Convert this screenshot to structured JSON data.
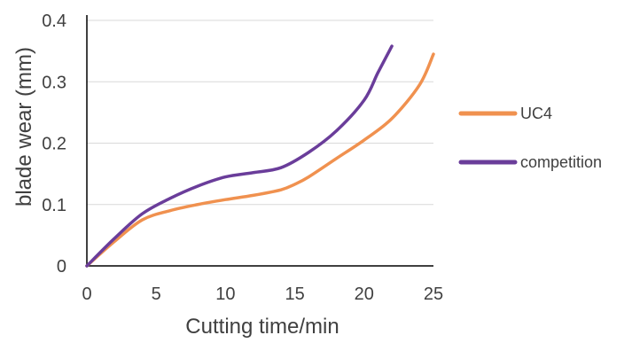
{
  "chart_data": {
    "type": "line",
    "title": "",
    "xlabel": "Cutting time/min",
    "ylabel": "blade wear (mm)",
    "xlim": [
      0,
      25
    ],
    "ylim": [
      0,
      0.4
    ],
    "x_ticks": [
      0,
      5,
      10,
      15,
      20,
      25
    ],
    "y_ticks": [
      0,
      0.1,
      0.2,
      0.3,
      0.4
    ],
    "x_tick_labels": [
      "0",
      "5",
      "10",
      "15",
      "20",
      "25"
    ],
    "y_tick_labels": [
      "0",
      "0.1",
      "0.2",
      "0.3",
      "0.4"
    ],
    "grid": "horizontal",
    "legend_position": "right",
    "series": [
      {
        "name": "UC4",
        "color": "#f0914f",
        "x": [
          0,
          2,
          4,
          6,
          8,
          10,
          12,
          14,
          15,
          16,
          18,
          20,
          22,
          24,
          25
        ],
        "y": [
          0,
          0.04,
          0.075,
          0.09,
          0.1,
          0.108,
          0.115,
          0.124,
          0.133,
          0.145,
          0.175,
          0.205,
          0.24,
          0.295,
          0.345
        ]
      },
      {
        "name": "competition",
        "color": "#6a3d9a",
        "x": [
          0,
          2,
          4,
          6,
          8,
          10,
          12,
          14,
          16,
          18,
          20,
          21,
          22
        ],
        "y": [
          0,
          0.045,
          0.085,
          0.11,
          0.13,
          0.145,
          0.152,
          0.16,
          0.185,
          0.22,
          0.27,
          0.315,
          0.358
        ]
      }
    ]
  }
}
